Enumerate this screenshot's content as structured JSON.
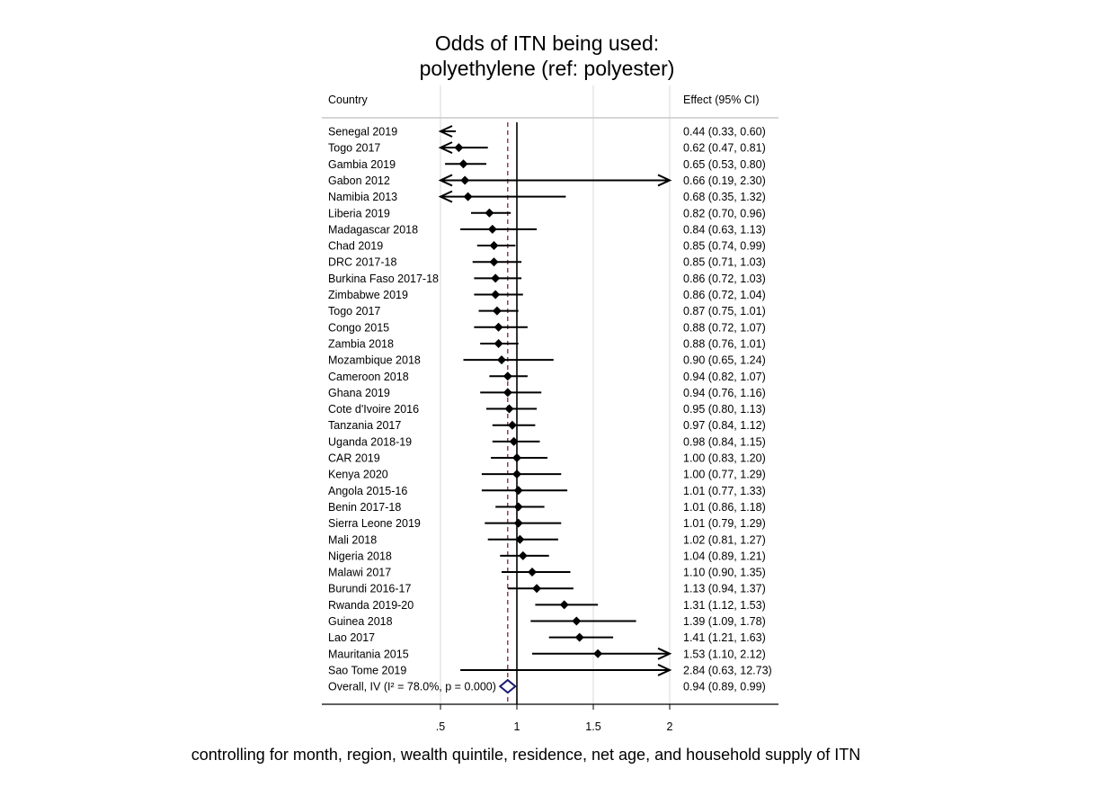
{
  "chart_data": {
    "type": "forest",
    "title_lines": [
      "Odds of ITN being used:",
      "polyethylene (ref: polyester)"
    ],
    "column_headers": {
      "left": "Country",
      "right": "Effect (95% CI)"
    },
    "caption": "controlling for month, region, wealth quintile, residence, net age, and household supply of ITN",
    "xlim": [
      0.0,
      2.0
    ],
    "x_ticks": [
      {
        "value": 0.5,
        "label": ".5"
      },
      {
        "value": 1.0,
        "label": "1"
      },
      {
        "value": 1.5,
        "label": "1.5"
      },
      {
        "value": 2.0,
        "label": "2"
      }
    ],
    "null_line": 1.0,
    "overall_line": 0.94,
    "rows": [
      {
        "label": "Senegal 2019",
        "est": 0.44,
        "lo": 0.33,
        "hi": 0.6,
        "text": "0.44 (0.33, 0.60)"
      },
      {
        "label": "Togo 2017",
        "est": 0.62,
        "lo": 0.47,
        "hi": 0.81,
        "text": "0.62 (0.47, 0.81)"
      },
      {
        "label": "Gambia 2019",
        "est": 0.65,
        "lo": 0.53,
        "hi": 0.8,
        "text": "0.65 (0.53, 0.80)"
      },
      {
        "label": "Gabon 2012",
        "est": 0.66,
        "lo": 0.19,
        "hi": 2.3,
        "text": "0.66 (0.19, 2.30)"
      },
      {
        "label": "Namibia 2013",
        "est": 0.68,
        "lo": 0.35,
        "hi": 1.32,
        "text": "0.68 (0.35, 1.32)"
      },
      {
        "label": "Liberia 2019",
        "est": 0.82,
        "lo": 0.7,
        "hi": 0.96,
        "text": "0.82 (0.70, 0.96)"
      },
      {
        "label": "Madagascar 2018",
        "est": 0.84,
        "lo": 0.63,
        "hi": 1.13,
        "text": "0.84 (0.63, 1.13)"
      },
      {
        "label": "Chad 2019",
        "est": 0.85,
        "lo": 0.74,
        "hi": 0.99,
        "text": "0.85 (0.74, 0.99)"
      },
      {
        "label": "DRC 2017-18",
        "est": 0.85,
        "lo": 0.71,
        "hi": 1.03,
        "text": "0.85 (0.71, 1.03)"
      },
      {
        "label": "Burkina Faso 2017-18",
        "est": 0.86,
        "lo": 0.72,
        "hi": 1.03,
        "text": "0.86 (0.72, 1.03)"
      },
      {
        "label": "Zimbabwe 2019",
        "est": 0.86,
        "lo": 0.72,
        "hi": 1.04,
        "text": "0.86 (0.72, 1.04)"
      },
      {
        "label": "Togo 2017",
        "est": 0.87,
        "lo": 0.75,
        "hi": 1.01,
        "text": "0.87 (0.75, 1.01)"
      },
      {
        "label": "Congo 2015",
        "est": 0.88,
        "lo": 0.72,
        "hi": 1.07,
        "text": "0.88 (0.72, 1.07)"
      },
      {
        "label": "Zambia 2018",
        "est": 0.88,
        "lo": 0.76,
        "hi": 1.01,
        "text": "0.88 (0.76, 1.01)"
      },
      {
        "label": "Mozambique 2018",
        "est": 0.9,
        "lo": 0.65,
        "hi": 1.24,
        "text": "0.90 (0.65, 1.24)"
      },
      {
        "label": "Cameroon 2018",
        "est": 0.94,
        "lo": 0.82,
        "hi": 1.07,
        "text": "0.94 (0.82, 1.07)"
      },
      {
        "label": "Ghana 2019",
        "est": 0.94,
        "lo": 0.76,
        "hi": 1.16,
        "text": "0.94 (0.76, 1.16)"
      },
      {
        "label": "Cote d'Ivoire 2016",
        "est": 0.95,
        "lo": 0.8,
        "hi": 1.13,
        "text": "0.95 (0.80, 1.13)"
      },
      {
        "label": "Tanzania 2017",
        "est": 0.97,
        "lo": 0.84,
        "hi": 1.12,
        "text": "0.97 (0.84, 1.12)"
      },
      {
        "label": "Uganda 2018-19",
        "est": 0.98,
        "lo": 0.84,
        "hi": 1.15,
        "text": "0.98 (0.84, 1.15)"
      },
      {
        "label": "CAR 2019",
        "est": 1.0,
        "lo": 0.83,
        "hi": 1.2,
        "text": "1.00 (0.83, 1.20)"
      },
      {
        "label": "Kenya 2020",
        "est": 1.0,
        "lo": 0.77,
        "hi": 1.29,
        "text": "1.00 (0.77, 1.29)"
      },
      {
        "label": "Angola 2015-16",
        "est": 1.01,
        "lo": 0.77,
        "hi": 1.33,
        "text": "1.01 (0.77, 1.33)"
      },
      {
        "label": "Benin 2017-18",
        "est": 1.01,
        "lo": 0.86,
        "hi": 1.18,
        "text": "1.01 (0.86, 1.18)"
      },
      {
        "label": "Sierra Leone 2019",
        "est": 1.01,
        "lo": 0.79,
        "hi": 1.29,
        "text": "1.01 (0.79, 1.29)"
      },
      {
        "label": "Mali 2018",
        "est": 1.02,
        "lo": 0.81,
        "hi": 1.27,
        "text": "1.02 (0.81, 1.27)"
      },
      {
        "label": "Nigeria 2018",
        "est": 1.04,
        "lo": 0.89,
        "hi": 1.21,
        "text": "1.04 (0.89, 1.21)"
      },
      {
        "label": "Malawi 2017",
        "est": 1.1,
        "lo": 0.9,
        "hi": 1.35,
        "text": "1.10 (0.90, 1.35)"
      },
      {
        "label": "Burundi 2016-17",
        "est": 1.13,
        "lo": 0.94,
        "hi": 1.37,
        "text": "1.13 (0.94, 1.37)"
      },
      {
        "label": "Rwanda 2019-20",
        "est": 1.31,
        "lo": 1.12,
        "hi": 1.53,
        "text": "1.31 (1.12, 1.53)"
      },
      {
        "label": "Guinea 2018",
        "est": 1.39,
        "lo": 1.09,
        "hi": 1.78,
        "text": "1.39 (1.09, 1.78)"
      },
      {
        "label": "Lao 2017",
        "est": 1.41,
        "lo": 1.21,
        "hi": 1.63,
        "text": "1.41 (1.21, 1.63)"
      },
      {
        "label": "Mauritania 2015",
        "est": 1.53,
        "lo": 1.1,
        "hi": 2.12,
        "text": "1.53 (1.10, 2.12)"
      },
      {
        "label": "Sao Tome 2019",
        "est": 2.84,
        "lo": 0.63,
        "hi": 12.73,
        "text": "2.84 (0.63, 12.73)"
      }
    ],
    "overall": {
      "label": "Overall, IV (I² = 78.0%, p = 0.000)",
      "est": 0.94,
      "lo": 0.89,
      "hi": 0.99,
      "text": "0.94 (0.89, 0.99)"
    },
    "colors": {
      "overall_line": "#8b2030",
      "diamond": "#1a1a6e",
      "ink": "#000000",
      "grid": "#d9d9d9",
      "axis": "#000000"
    }
  }
}
